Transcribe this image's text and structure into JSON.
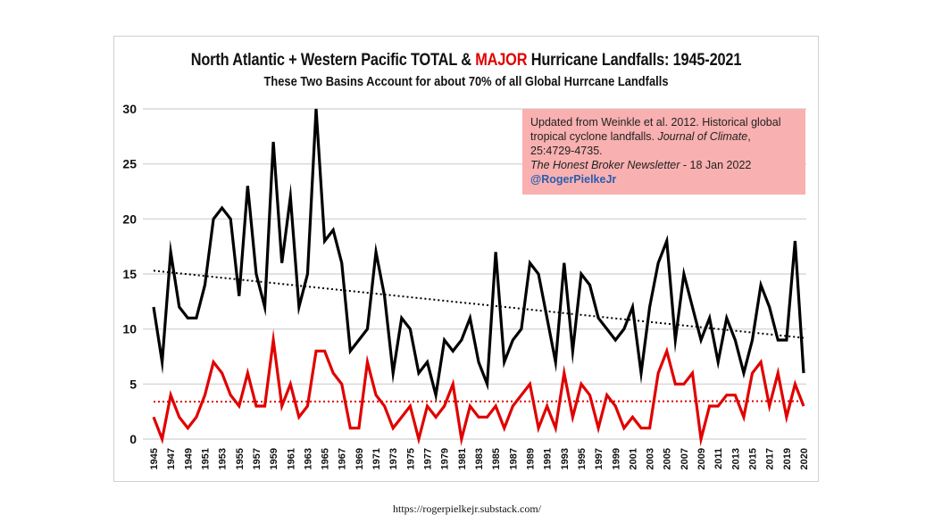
{
  "chart_data": {
    "type": "line",
    "title_parts": [
      "North Atlantic + Western Pacific TOTAL & ",
      "MAJOR",
      " Hurricane Landfalls: 1945-2021"
    ],
    "subtitle": "These Two Basins Account  for about 70% of all Global  Hurrcane Landfalls",
    "xlabel": "",
    "ylabel": "",
    "ylim": [
      0,
      30
    ],
    "yticks": [
      "0",
      "5",
      "10",
      "15",
      "20",
      "25",
      "30"
    ],
    "xtick_labels": [
      "1945",
      "1947",
      "1949",
      "1951",
      "1953",
      "1955",
      "1957",
      "1959",
      "1961",
      "1963",
      "1965",
      "1967",
      "1969",
      "1971",
      "1973",
      "1975",
      "1977",
      "1979",
      "1981",
      "1983",
      "1985",
      "1987",
      "1989",
      "1991",
      "1993",
      "1995",
      "1997",
      "1999",
      "2001",
      "2003",
      "2005",
      "2007",
      "2009",
      "2011",
      "2013",
      "2015",
      "2017",
      "2019",
      "2020"
    ],
    "grid": true,
    "x": [
      1945,
      1946,
      1947,
      1948,
      1949,
      1950,
      1951,
      1952,
      1953,
      1954,
      1955,
      1956,
      1957,
      1958,
      1959,
      1960,
      1961,
      1962,
      1963,
      1964,
      1965,
      1966,
      1967,
      1968,
      1969,
      1970,
      1971,
      1972,
      1973,
      1974,
      1975,
      1976,
      1977,
      1978,
      1979,
      1980,
      1981,
      1982,
      1983,
      1984,
      1985,
      1986,
      1987,
      1988,
      1989,
      1990,
      1991,
      1992,
      1993,
      1994,
      1995,
      1996,
      1997,
      1998,
      1999,
      2000,
      2001,
      2002,
      2003,
      2004,
      2005,
      2006,
      2007,
      2008,
      2009,
      2010,
      2011,
      2012,
      2013,
      2014,
      2015,
      2016,
      2017,
      2018,
      2019,
      2020,
      2021
    ],
    "series": [
      {
        "color": "#000000",
        "trend": [
          15.3,
          9.2
        ],
        "values": [
          12,
          7,
          17,
          12,
          11,
          11,
          14,
          20,
          21,
          20,
          13,
          23,
          15,
          12,
          27,
          16,
          22,
          12,
          15,
          30,
          18,
          19,
          16,
          8,
          9,
          10,
          17,
          13,
          6,
          11,
          10,
          6,
          7,
          4,
          9,
          8,
          9,
          11,
          7,
          5,
          17,
          7,
          9,
          10,
          16,
          15,
          11,
          7,
          16,
          8,
          15,
          14,
          11,
          10,
          9,
          10,
          12,
          6,
          12,
          16,
          18,
          9,
          15,
          12,
          9,
          11,
          7,
          11,
          9,
          6,
          9,
          14,
          12,
          9,
          9,
          18,
          6
        ]
      },
      {
        "color": "#e00000",
        "trend": [
          3.4,
          3.45
        ],
        "values": [
          2,
          0,
          4,
          2,
          1,
          2,
          4,
          7,
          6,
          4,
          3,
          6,
          3,
          3,
          9,
          3,
          5,
          2,
          3,
          8,
          8,
          6,
          5,
          1,
          1,
          7,
          4,
          3,
          1,
          2,
          3,
          0,
          3,
          2,
          3,
          5,
          0,
          3,
          2,
          2,
          3,
          1,
          3,
          4,
          5,
          1,
          3,
          1,
          6,
          2,
          5,
          4,
          1,
          4,
          3,
          1,
          2,
          1,
          1,
          6,
          8,
          5,
          5,
          6,
          0,
          3,
          3,
          4,
          4,
          2,
          6,
          7,
          3,
          6,
          2,
          5,
          3
        ]
      }
    ]
  },
  "annotation": {
    "line1": "Updated from Weinkle et al. 2012. Historical global tropical cyclone landfalls. ",
    "journal": "Journal of Climate",
    "line2": ", 25:4729-4735.",
    "newsletter": "The Honest Broker Newsletter",
    "date": " - 18 Jan 2022",
    "handle": "@RogerPielkeJr"
  },
  "footer": "https://rogerpielkejr.substack.com/"
}
